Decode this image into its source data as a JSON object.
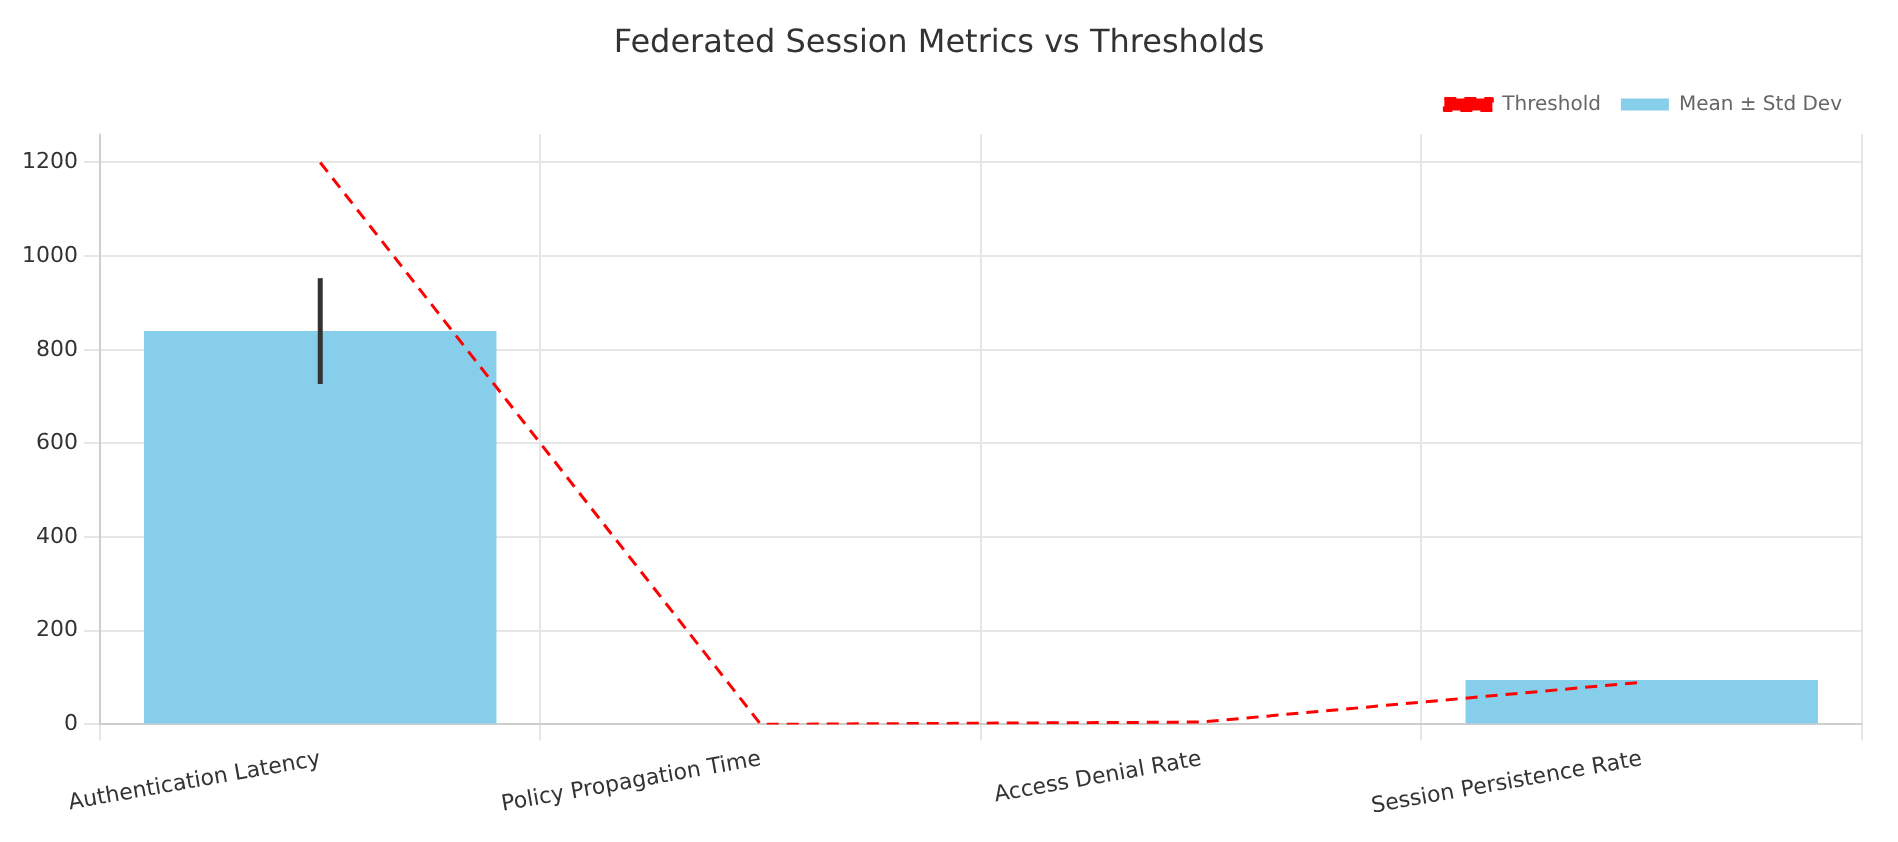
{
  "chart_data": {
    "type": "bar",
    "title": "Federated Session Metrics vs Thresholds",
    "categories": [
      "Authentication Latency",
      "Policy Propagation Time",
      "Access Denial Rate",
      "Session Persistence Rate"
    ],
    "series": [
      {
        "name": "Mean ± Std Dev",
        "color": "#87ceeb",
        "values": [
          840,
          0,
          0,
          95
        ],
        "errors": [
          113,
          null,
          null,
          null
        ]
      },
      {
        "name": "Threshold",
        "type": "line",
        "color": "#ff0000",
        "line_style": "dashed",
        "marker": "none",
        "values": [
          1200,
          0,
          5,
          90
        ]
      }
    ],
    "ylim": [
      0,
      1260
    ],
    "yticks": [
      0,
      200,
      400,
      600,
      800,
      1000,
      1200
    ],
    "grid": true,
    "legend": "top right"
  }
}
